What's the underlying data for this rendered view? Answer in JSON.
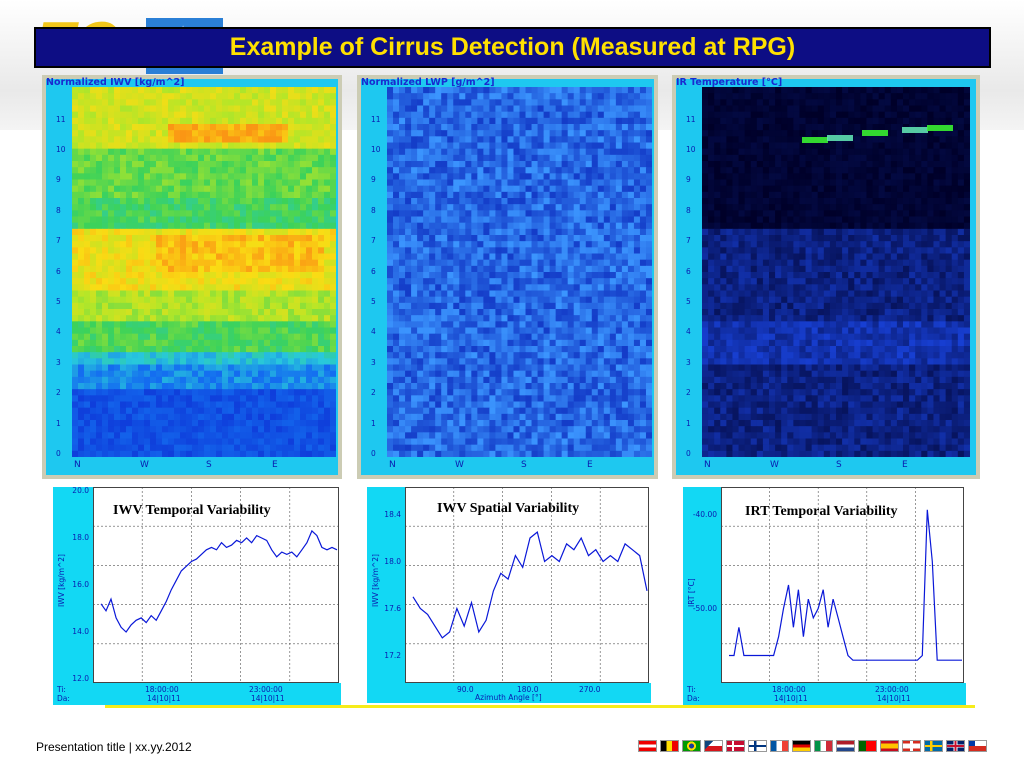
{
  "title": "Example of Cirrus Detection (Measured at RPG)",
  "footer": "Presentation title | xx.yy.2012",
  "heatmaps": [
    {
      "title": "Normalized IWV [kg/m^2]",
      "yticks": [
        "0",
        "1",
        "2",
        "3",
        "4",
        "5",
        "6",
        "7",
        "8",
        "9",
        "10",
        "11"
      ],
      "xticks": [
        "N",
        "W",
        "S",
        "E"
      ]
    },
    {
      "title": "Normalized LWP [g/m^2]",
      "yticks": [
        "0",
        "1",
        "2",
        "3",
        "4",
        "5",
        "6",
        "7",
        "8",
        "9",
        "10",
        "11"
      ],
      "xticks": [
        "N",
        "W",
        "S",
        "E"
      ]
    },
    {
      "title": "IR Temperature [°C]",
      "yticks": [
        "0",
        "1",
        "2",
        "3",
        "4",
        "5",
        "6",
        "7",
        "8",
        "9",
        "10",
        "11"
      ],
      "xticks": [
        "N",
        "W",
        "S",
        "E"
      ]
    }
  ],
  "chart_data": [
    {
      "type": "line",
      "title": "IWV Temporal Variability",
      "ylabel": "IWV [kg/m^2]",
      "yticks": [
        "20.0",
        "18.0",
        "16.0",
        "14.0",
        "12.0"
      ],
      "ylim": [
        12.0,
        20.0
      ],
      "xticks": [
        "18:00:00",
        "23:00:00"
      ],
      "xdates": [
        "14|10|11",
        "14|10|11"
      ],
      "xrow_labels": [
        "Ti:",
        "Da:"
      ],
      "values": [
        15.2,
        14.9,
        15.4,
        14.6,
        14.2,
        14.0,
        14.3,
        14.5,
        14.6,
        14.4,
        14.7,
        14.5,
        14.9,
        15.3,
        15.8,
        16.2,
        16.6,
        16.8,
        17.0,
        17.1,
        17.3,
        17.5,
        17.6,
        17.5,
        17.8,
        17.6,
        17.7,
        17.9,
        17.8,
        18.0,
        17.8,
        18.1,
        18.0,
        17.9,
        17.5,
        17.2,
        17.4,
        17.3,
        17.4,
        17.2,
        17.5,
        17.8,
        18.3,
        18.1,
        17.6,
        17.5,
        17.6,
        17.5
      ]
    },
    {
      "type": "line",
      "title": "IWV Spatial Variability",
      "ylabel": "IWV [kg/m^2]",
      "xlabel": "Azimuth Angle [°]",
      "yticks": [
        "18.4",
        "18.0",
        "17.6",
        "17.2"
      ],
      "ylim": [
        17.0,
        18.6
      ],
      "xticks": [
        "90.0",
        "180.0",
        "270.0"
      ],
      "values": [
        17.7,
        17.6,
        17.55,
        17.45,
        17.35,
        17.4,
        17.6,
        17.45,
        17.65,
        17.4,
        17.5,
        17.75,
        17.9,
        17.85,
        18.05,
        17.95,
        18.2,
        18.25,
        18.0,
        18.05,
        18.0,
        18.15,
        18.1,
        18.2,
        18.05,
        18.1,
        18.0,
        18.05,
        18.0,
        18.15,
        18.1,
        18.05,
        17.75
      ]
    },
    {
      "type": "line",
      "title": "IRT Temporal Variability",
      "ylabel": "IRT [°C]",
      "yticks": [
        "-40.00",
        "-50.00"
      ],
      "ylim": [
        -57.5,
        -37.5
      ],
      "xticks": [
        "18:00:00",
        "23:00:00"
      ],
      "xdates": [
        "14|10|11",
        "14|10|11"
      ],
      "xrow_labels": [
        "Ti:",
        "Da:"
      ],
      "values": [
        -55.0,
        -55.0,
        -52.0,
        -55.0,
        -55.0,
        -55.0,
        -55.0,
        -55.0,
        -55.0,
        -55.0,
        -53.0,
        -50.0,
        -47.5,
        -52.0,
        -48.0,
        -53.0,
        -49.0,
        -51.0,
        -50.0,
        -48.0,
        -52.0,
        -49.0,
        -51.0,
        -53.0,
        -55.0,
        -55.5,
        -55.5,
        -55.5,
        -55.5,
        -55.5,
        -55.5,
        -55.5,
        -55.5,
        -55.5,
        -55.5,
        -55.5,
        -55.5,
        -55.5,
        -55.5,
        -55.0,
        -39.5,
        -45.0,
        -55.5,
        -55.5,
        -55.5,
        -55.5,
        -55.5,
        -55.5
      ]
    }
  ],
  "colors": {
    "title_bg": "#0d0d84",
    "title_fg": "#ffe000",
    "axis_bar": "#12d8f4",
    "line": "#0a18d8",
    "frame": "#ccccb4"
  },
  "flags": [
    "at",
    "be",
    "br",
    "cz",
    "dk",
    "fi",
    "fr",
    "de",
    "it",
    "nl",
    "pt",
    "es",
    "ch",
    "se",
    "gb",
    "cl"
  ]
}
